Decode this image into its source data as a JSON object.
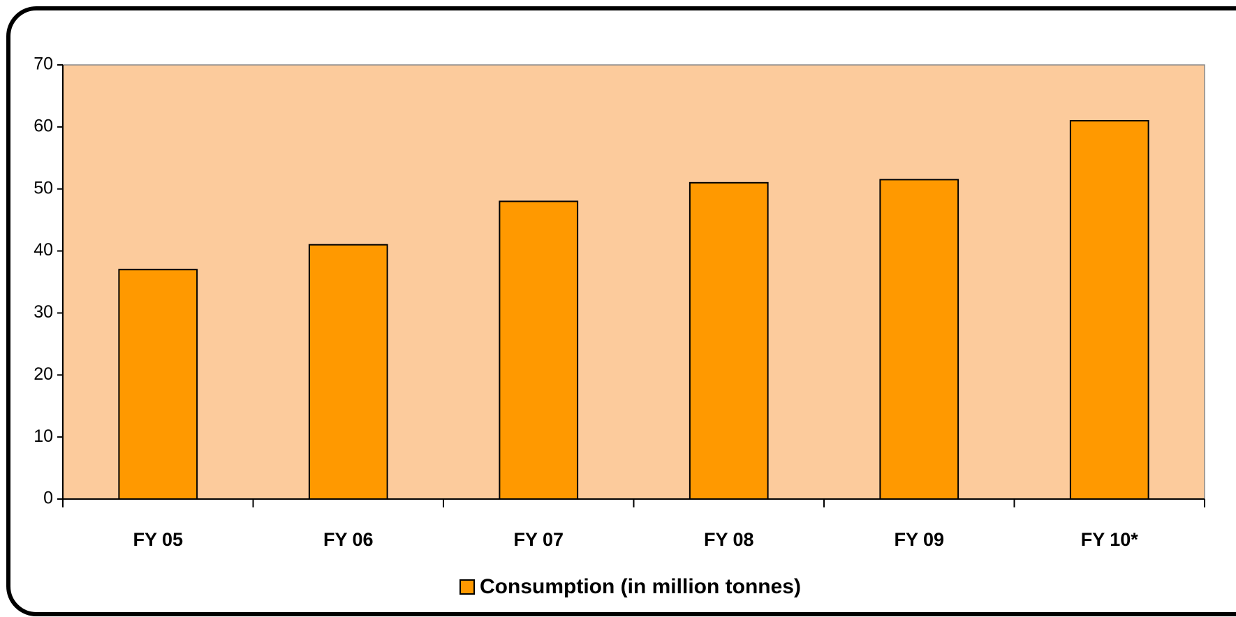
{
  "chart_data": {
    "type": "bar",
    "categories": [
      "FY 05",
      "FY 06",
      "FY 07",
      "FY 08",
      "FY 09",
      "FY 10*"
    ],
    "series": [
      {
        "name": "Consumption (in million tonnes)",
        "color": "#ff9900",
        "values": [
          37,
          41,
          48,
          51,
          51.5,
          61
        ]
      }
    ],
    "ylim": [
      0,
      70
    ],
    "yticks": [
      0,
      10,
      20,
      30,
      40,
      50,
      60,
      70
    ],
    "plot_background": "#fccb9c",
    "legend": "bottom"
  }
}
